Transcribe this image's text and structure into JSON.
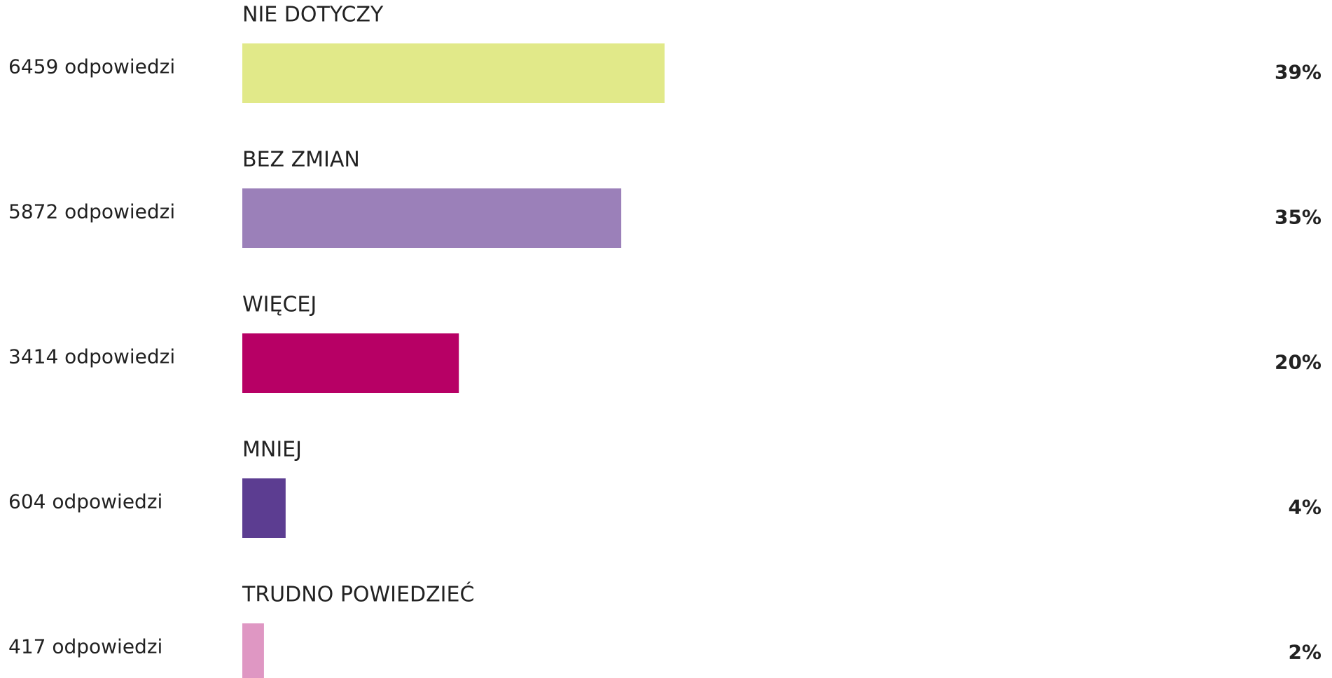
{
  "chart_data": {
    "type": "bar",
    "categories": [
      "NIE DOTYCZY",
      "BEZ ZMIAN",
      "WIĘCEJ",
      "MNIEJ",
      "TRUDNO POWIEDZIEĆ"
    ],
    "values": [
      39,
      35,
      20,
      4,
      2
    ],
    "value_labels": [
      "39%",
      "35%",
      "20%",
      "4%",
      "2%"
    ],
    "counts": [
      6459,
      5872,
      3414,
      604,
      417
    ],
    "count_labels": [
      "6459 odpowiedzi",
      "5872 odpowiedzi",
      "3414 odpowiedzi",
      "604 odpowiedzi",
      "417 odpowiedzi"
    ],
    "colors": [
      "#e1e989",
      "#9b80b9",
      "#b70065",
      "#5c3d91",
      "#df97c3"
    ],
    "xlim": [
      0,
      100
    ]
  }
}
